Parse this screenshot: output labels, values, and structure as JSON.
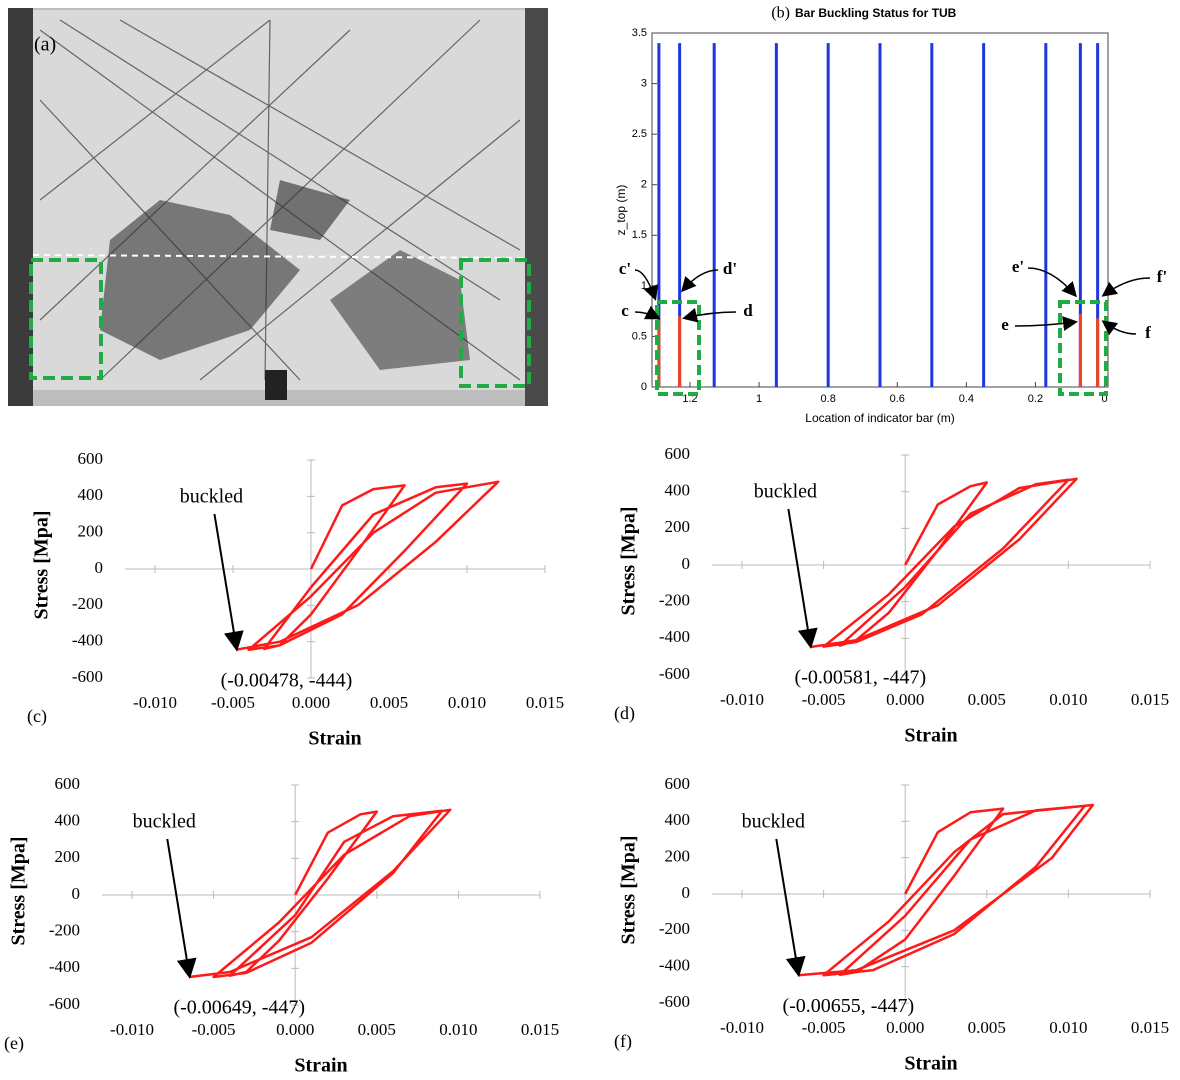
{
  "photo": {
    "label": "(a)"
  },
  "chart_data": [
    {
      "type": "vbars",
      "label": "(b)",
      "title": "Bar Buckling Status for TUB",
      "xlabel": "Location of indicator bar (m)",
      "ylabel": "z_top (m)",
      "x": [
        1.29,
        1.23,
        1.13,
        0.95,
        0.8,
        0.65,
        0.5,
        0.35,
        0.17,
        0.07,
        0.02
      ],
      "values": [
        3.4,
        3.4,
        3.4,
        3.4,
        3.4,
        3.4,
        3.4,
        3.4,
        3.4,
        3.4,
        3.4
      ],
      "buckled_values": [
        0.68,
        0.7,
        null,
        null,
        null,
        null,
        null,
        null,
        null,
        0.72,
        0.68
      ],
      "color": "#1f35e0",
      "buckled_color": "#ee4422",
      "xlim": [
        1.31,
        -0.01
      ],
      "ylim": [
        0,
        3.5
      ],
      "xticks": [
        1.2,
        1,
        0.8,
        0.6,
        0.4,
        0.2,
        0
      ],
      "yticks": [
        0,
        0.5,
        1,
        1.5,
        2,
        2.5,
        3,
        3.5
      ],
      "annotations": [
        "c'",
        "d'",
        "c",
        "d",
        "e'",
        "f'",
        "e",
        "f"
      ]
    },
    {
      "type": "line",
      "label": "(c)",
      "xlabel": "Strain",
      "ylabel": "Stress [Mpa]",
      "color": "#ff1a1a",
      "x": [
        0,
        0.002,
        0.004,
        0.006,
        0.003,
        0,
        -0.002,
        -0.003,
        0,
        0.004,
        0.008,
        0.01,
        0.006,
        0.002,
        -0.002,
        -0.004,
        0,
        0.004,
        0.008,
        0.012,
        0.008,
        0.003,
        -0.002,
        -0.00478
      ],
      "values": [
        0,
        350,
        440,
        460,
        100,
        -250,
        -420,
        -440,
        -100,
        300,
        450,
        470,
        100,
        -250,
        -420,
        -445,
        -150,
        200,
        420,
        480,
        150,
        -200,
        -400,
        -444
      ],
      "xlim": [
        -0.01,
        0.015
      ],
      "ylim": [
        -600,
        600
      ],
      "xticks": [
        {
          "value": -0.01,
          "label": "-0.010"
        },
        -0.005,
        {
          "value": 0,
          "label": "0.000"
        },
        0.005,
        {
          "value": 0.01,
          "label": "0.010"
        },
        0.015
      ],
      "yticks": [
        -600,
        -400,
        -200,
        0,
        200,
        400,
        600
      ],
      "annotations": [
        "buckled",
        "(-0.00478, -444)"
      ]
    },
    {
      "type": "line",
      "label": "(d)",
      "xlabel": "Strain",
      "ylabel": "Stress [Mpa]",
      "color": "#ff1a1a",
      "x": [
        0,
        0.002,
        0.004,
        0.005,
        0.002,
        -0.001,
        -0.003,
        -0.004,
        0,
        0.004,
        0.008,
        0.01,
        0.006,
        0.001,
        -0.003,
        -0.005,
        -0.001,
        0.003,
        0.007,
        0.0105,
        0.007,
        0.002,
        -0.003,
        -0.00581
      ],
      "values": [
        0,
        330,
        430,
        450,
        80,
        -260,
        -410,
        -440,
        -120,
        280,
        440,
        465,
        90,
        -270,
        -420,
        -445,
        -160,
        210,
        420,
        470,
        140,
        -220,
        -410,
        -447
      ],
      "xlim": [
        -0.01,
        0.015
      ],
      "ylim": [
        -600,
        600
      ],
      "xticks": [
        {
          "value": -0.01,
          "label": "-0.010"
        },
        -0.005,
        {
          "value": 0,
          "label": "0.000"
        },
        0.005,
        {
          "value": 0.01,
          "label": "0.010"
        },
        0.015
      ],
      "yticks": [
        -600,
        -400,
        -200,
        0,
        200,
        400,
        600
      ],
      "annotations": [
        "buckled",
        "(-0.00581, -447)"
      ]
    },
    {
      "type": "line",
      "label": "(e)",
      "xlabel": "Strain",
      "ylabel": "Stress [Mpa]",
      "color": "#ff1a1a",
      "x": [
        0,
        0.002,
        0.004,
        0.005,
        0.002,
        -0.001,
        -0.003,
        -0.004,
        0,
        0.003,
        0.006,
        0.009,
        0.006,
        0.001,
        -0.003,
        -0.005,
        -0.001,
        0.003,
        0.007,
        0.0095,
        0.006,
        0.001,
        -0.004,
        -0.00649
      ],
      "values": [
        0,
        340,
        440,
        455,
        90,
        -250,
        -420,
        -440,
        -110,
        290,
        430,
        460,
        120,
        -260,
        -425,
        -447,
        -150,
        220,
        430,
        465,
        130,
        -230,
        -420,
        -447
      ],
      "xlim": [
        -0.01,
        0.015
      ],
      "ylim": [
        -600,
        600
      ],
      "xticks": [
        {
          "value": -0.01,
          "label": "-0.010"
        },
        -0.005,
        {
          "value": 0,
          "label": "0.000"
        },
        0.005,
        {
          "value": 0.01,
          "label": "0.010"
        },
        0.015
      ],
      "yticks": [
        -600,
        -400,
        -200,
        0,
        200,
        400,
        600
      ],
      "annotations": [
        "buckled",
        "(-0.00649, -447)"
      ]
    },
    {
      "type": "line",
      "label": "(f)",
      "xlabel": "Strain",
      "ylabel": "Stress [Mpa]",
      "color": "#ff1a1a",
      "x": [
        0,
        0.002,
        0.004,
        0.006,
        0.003,
        0,
        -0.003,
        -0.004,
        0,
        0.004,
        0.008,
        0.011,
        0.008,
        0.003,
        -0.002,
        -0.005,
        -0.001,
        0.003,
        0.006,
        0.0115,
        0.009,
        0.003,
        -0.003,
        -0.00655
      ],
      "values": [
        0,
        340,
        450,
        470,
        100,
        -250,
        -430,
        -445,
        -120,
        300,
        460,
        485,
        150,
        -220,
        -420,
        -447,
        -150,
        230,
        440,
        490,
        200,
        -200,
        -420,
        -447
      ],
      "xlim": [
        -0.01,
        0.015
      ],
      "ylim": [
        -600,
        600
      ],
      "xticks": [
        {
          "value": -0.01,
          "label": "-0.010"
        },
        -0.005,
        {
          "value": 0,
          "label": "0.000"
        },
        0.005,
        {
          "value": 0.01,
          "label": "0.010"
        },
        0.015
      ],
      "yticks": [
        -600,
        -400,
        -200,
        0,
        200,
        400,
        600
      ],
      "annotations": [
        "buckled",
        "(-0.00655, -447)"
      ]
    }
  ]
}
